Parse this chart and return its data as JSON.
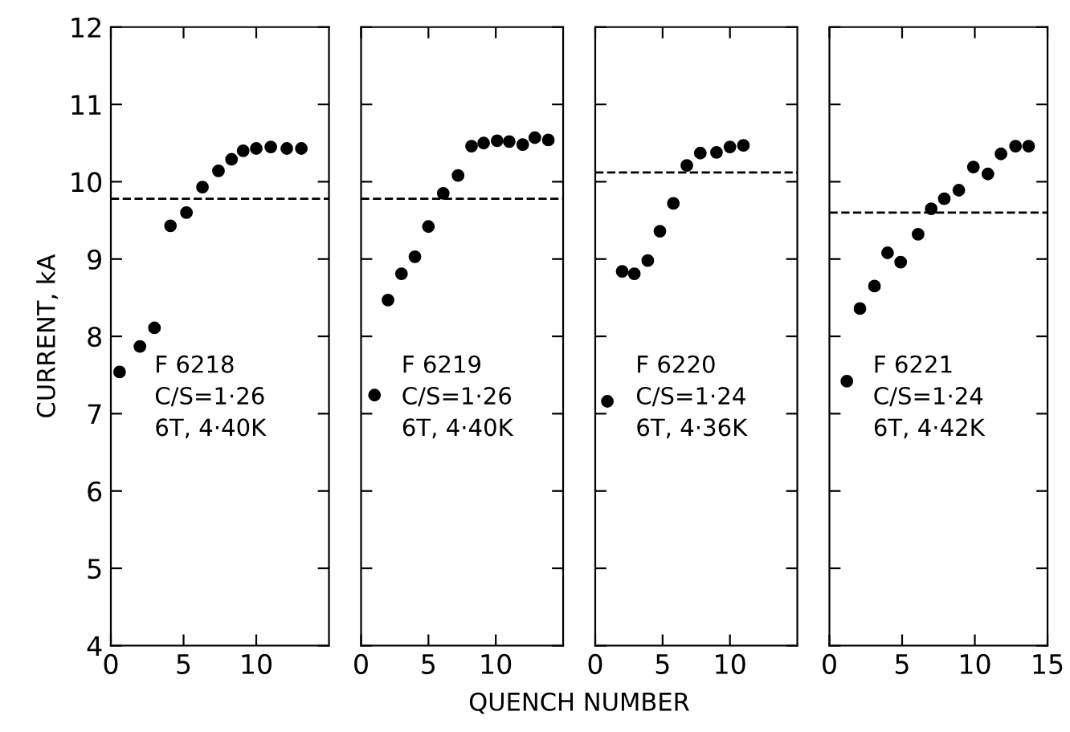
{
  "chart_data": [
    {
      "type": "scatter",
      "ylabel": "CURRENT, kA",
      "marker": "circle",
      "grid": false,
      "xlim": [
        0,
        15
      ],
      "ylim": [
        4,
        12
      ],
      "xticks": [
        0,
        5,
        10
      ],
      "yticks": [
        4,
        5,
        6,
        7,
        8,
        9,
        10,
        11,
        12
      ],
      "annotations": [
        "F 6218\nC/S=1·26\n6T, 4·40K"
      ],
      "ref_lines": [
        {
          "axis": "y",
          "value": 9.78,
          "line_style": "dashed"
        }
      ],
      "series": [
        {
          "color": "#000000",
          "x": [
            0.6,
            2,
            3,
            4.1,
            5.2,
            6.3,
            7.4,
            8.3,
            9.1,
            10,
            11,
            12.1,
            13.1
          ],
          "values": [
            7.54,
            7.87,
            8.11,
            9.43,
            9.6,
            9.93,
            10.14,
            10.29,
            10.4,
            10.43,
            10.45,
            10.43,
            10.43
          ]
        }
      ]
    },
    {
      "type": "scatter",
      "xlabel": "QUENCH NUMBER",
      "marker": "circle",
      "grid": false,
      "tick_labels": "x",
      "xlim": [
        0,
        15
      ],
      "ylim": [
        4,
        12
      ],
      "xticks": [
        0,
        5,
        10
      ],
      "yticks": [
        4,
        5,
        6,
        7,
        8,
        9,
        10,
        11,
        12
      ],
      "annotations": [
        "F 6219\nC/S=1·26\n6T, 4·40K"
      ],
      "ref_lines": [
        {
          "axis": "y",
          "value": 9.78,
          "line_style": "dashed"
        }
      ],
      "series": [
        {
          "color": "#000000",
          "x": [
            1,
            2,
            3,
            4,
            5,
            6.1,
            7.2,
            8.2,
            9.1,
            10.1,
            11,
            12,
            12.9,
            13.9
          ],
          "values": [
            7.24,
            8.47,
            8.81,
            9.03,
            9.42,
            9.85,
            10.08,
            10.46,
            10.5,
            10.53,
            10.52,
            10.48,
            10.57,
            10.54
          ]
        }
      ]
    },
    {
      "type": "scatter",
      "marker": "circle",
      "grid": false,
      "tick_labels": "x",
      "xlim": [
        0,
        15
      ],
      "ylim": [
        4,
        12
      ],
      "xticks": [
        0,
        5,
        10
      ],
      "yticks": [
        4,
        5,
        6,
        7,
        8,
        9,
        10,
        11,
        12
      ],
      "annotations": [
        "F 6220\nC/S=1·24\n6T, 4·36K"
      ],
      "ref_lines": [
        {
          "axis": "y",
          "value": 10.12,
          "line_style": "dashed"
        }
      ],
      "series": [
        {
          "color": "#000000",
          "x": [
            0.9,
            2,
            2.9,
            3.9,
            4.8,
            5.8,
            6.8,
            7.8,
            9,
            10,
            11
          ],
          "values": [
            7.16,
            8.84,
            8.81,
            8.98,
            9.36,
            9.72,
            10.21,
            10.37,
            10.38,
            10.45,
            10.47
          ]
        }
      ]
    },
    {
      "type": "scatter",
      "marker": "circle",
      "grid": false,
      "tick_labels": "x",
      "xlim": [
        0,
        15
      ],
      "ylim": [
        4,
        12
      ],
      "xticks": [
        0,
        5,
        10,
        15
      ],
      "yticks": [
        4,
        5,
        6,
        7,
        8,
        9,
        10,
        11,
        12
      ],
      "annotations": [
        "F 6221\nC/S=1·24\n6T, 4·42K"
      ],
      "ref_lines": [
        {
          "axis": "y",
          "value": 9.6,
          "line_style": "dashed"
        }
      ],
      "series": [
        {
          "color": "#000000",
          "x": [
            1.2,
            2.1,
            3.1,
            4,
            4.9,
            6.1,
            7,
            7.9,
            8.9,
            9.9,
            10.9,
            11.8,
            12.8,
            13.7
          ],
          "values": [
            7.42,
            8.36,
            8.65,
            9.08,
            8.96,
            9.32,
            9.65,
            9.78,
            9.89,
            10.19,
            10.1,
            10.36,
            10.46,
            10.46
          ]
        }
      ]
    }
  ]
}
